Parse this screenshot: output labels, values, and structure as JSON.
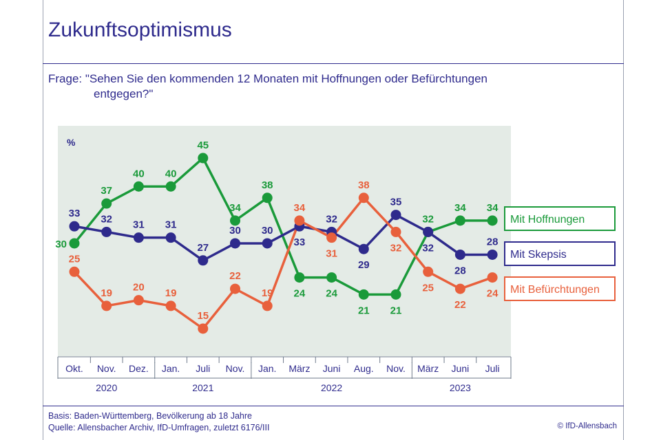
{
  "header": {
    "title": "Zukunftsoptimismus",
    "question_line1": "Frage: \"Sehen Sie den kommenden 12 Monaten mit Hoffnungen oder Befürchtungen",
    "question_line2": "entgegen?\""
  },
  "footer": {
    "basis": "Basis: Baden-Württemberg, Bevölkerung ab 18 Jahre",
    "source": "Quelle: Allensbacher Archiv, IfD-Umfragen, zuletzt 6176/III",
    "copyright": "© IfD-Allensbach"
  },
  "colors": {
    "hope": "#1a9a3a",
    "skepsis": "#2e2a8c",
    "fear": "#e8603c",
    "plot_bg": "#e4ebe6",
    "text": "#2e2a8c"
  },
  "chart_data": {
    "type": "line",
    "ylabel": "%",
    "categories": [
      "Okt.",
      "Nov.",
      "Dez.",
      "Jan.",
      "Juli",
      "Nov.",
      "Jan.",
      "März",
      "Juni",
      "Aug.",
      "Nov.",
      "März",
      "Juni",
      "Juli"
    ],
    "years": [
      {
        "label": "2020",
        "start": 0,
        "end": 2
      },
      {
        "label": "2021",
        "start": 3,
        "end": 5
      },
      {
        "label": "2022",
        "start": 6,
        "end": 10
      },
      {
        "label": "2023",
        "start": 11,
        "end": 13
      }
    ],
    "series": [
      {
        "name": "Mit Hoffnungen",
        "color": "#1a9a3a",
        "values": [
          30,
          37,
          40,
          40,
          45,
          34,
          38,
          24,
          24,
          21,
          21,
          32,
          34,
          34
        ]
      },
      {
        "name": "Mit Skepsis",
        "color": "#2e2a8c",
        "values": [
          33,
          32,
          31,
          31,
          27,
          30,
          30,
          33,
          32,
          29,
          35,
          32,
          28,
          28
        ]
      },
      {
        "name": "Mit Befürchtungen",
        "color": "#e8603c",
        "values": [
          25,
          19,
          20,
          19,
          15,
          22,
          19,
          34,
          31,
          38,
          32,
          25,
          22,
          24
        ]
      }
    ],
    "legend_position": "right",
    "grid": false
  }
}
